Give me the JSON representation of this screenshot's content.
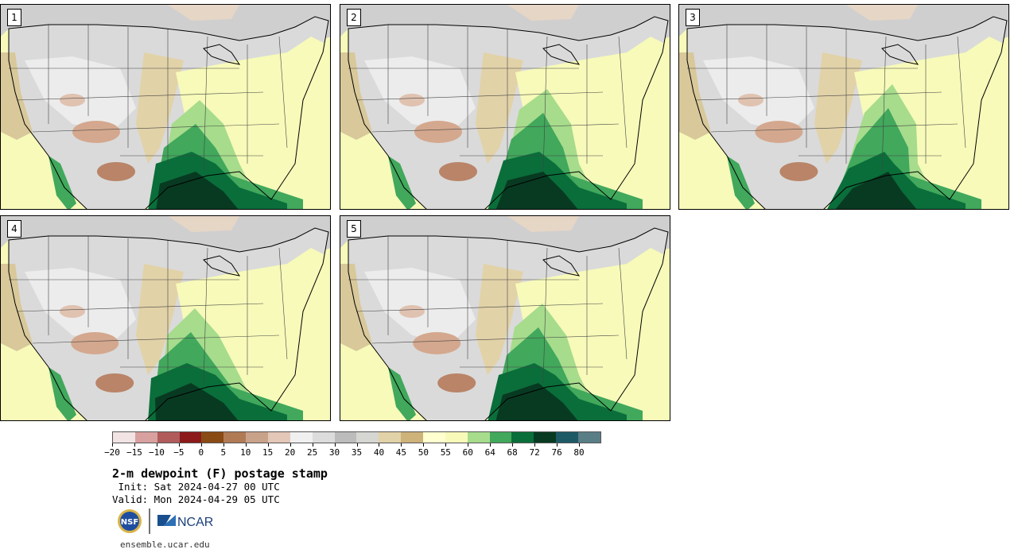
{
  "panels": [
    {
      "label": "1"
    },
    {
      "label": "2"
    },
    {
      "label": "3"
    },
    {
      "label": "4"
    },
    {
      "label": "5"
    }
  ],
  "colorbar": {
    "colors": [
      "#f2e4e4",
      "#d9a0a0",
      "#b15b5b",
      "#8c1a1a",
      "#8a4a14",
      "#b07a55",
      "#c9a28a",
      "#e3c7b7",
      "#f0f0f0",
      "#dcdcdc",
      "#bcbcbc",
      "#d6d6d2",
      "#e2d2a8",
      "#cdb27a",
      "#ffffd0",
      "#f7fab9",
      "#a6dc8c",
      "#41a85c",
      "#0a6e3a",
      "#083a22",
      "#1e5a66",
      "#5a7e86"
    ],
    "tick_labels": [
      "−20",
      "−15",
      "−10",
      "−5",
      "0",
      "5",
      "10",
      "15",
      "20",
      "25",
      "30",
      "35",
      "40",
      "45",
      "50",
      "55",
      "60",
      "64",
      "68",
      "72",
      "76",
      "80"
    ]
  },
  "title": "2-m dewpoint (F) postage stamp",
  "init_line": " Init: Sat 2024-04-27 00 UTC",
  "valid_line": "Valid: Mon 2024-04-29 05 UTC",
  "logos": {
    "nsf": "NSF",
    "ncar": "NCAR"
  },
  "footer": "ensemble.ucar.edu"
}
